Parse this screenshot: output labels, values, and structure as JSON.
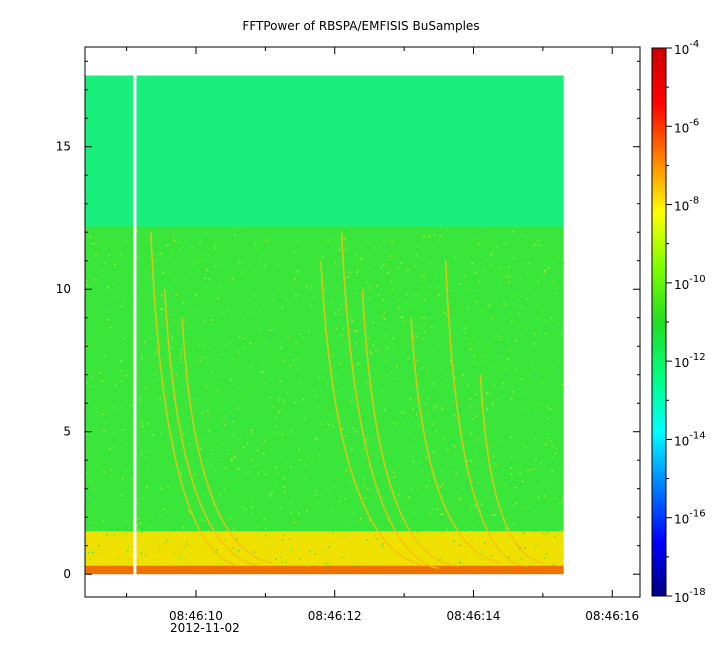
{
  "chart_data": {
    "type": "heatmap",
    "title": "FFTPower of RBSPA/EMFISIS  BuSamples",
    "x_ticks": [
      {
        "t": 10,
        "label": "08:46:10"
      },
      {
        "t": 12,
        "label": "08:46:12"
      },
      {
        "t": 14,
        "label": "08:46:14"
      },
      {
        "t": 16,
        "label": "08:46:16"
      }
    ],
    "x_date_label": "2012-11-02",
    "xlim_seconds_after_0846": [
      8.4,
      16.4
    ],
    "y_ticks": [
      0,
      5,
      10,
      15
    ],
    "ylim": [
      -0.8,
      18.5
    ],
    "data_extent": {
      "x_seconds": [
        8.4,
        15.3
      ],
      "y": [
        0,
        17.5
      ]
    },
    "gap_at_seconds": 9.12,
    "colorbar": {
      "scale": "log",
      "range": [
        1e-18,
        0.0001
      ],
      "ticks": [
        {
          "exp": -4,
          "label_base": "10",
          "label_exp": "-4"
        },
        {
          "exp": -6,
          "label_base": "10",
          "label_exp": "-6"
        },
        {
          "exp": -8,
          "label_base": "10",
          "label_exp": "-8"
        },
        {
          "exp": -10,
          "label_base": "10",
          "label_exp": "-10"
        },
        {
          "exp": -12,
          "label_base": "10",
          "label_exp": "-12"
        },
        {
          "exp": -14,
          "label_base": "10",
          "label_exp": "-14"
        },
        {
          "exp": -16,
          "label_base": "10",
          "label_exp": "-16"
        },
        {
          "exp": -18,
          "label_base": "10",
          "label_exp": "-18"
        }
      ],
      "colormap": [
        "#00007f",
        "#0000ff",
        "#007fff",
        "#00ffff",
        "#00ff80",
        "#22dd22",
        "#7fff00",
        "#ffff00",
        "#ff7f00",
        "#ff0000",
        "#cc0000"
      ]
    },
    "bands": [
      {
        "y_from": 12.2,
        "y_to": 17.5,
        "level_exp": -11.8,
        "color": "#18ef7c"
      },
      {
        "y_from": 1.5,
        "y_to": 12.2,
        "level_exp": -10.2,
        "color": "#3ae63a"
      },
      {
        "y_from": 0.3,
        "y_to": 1.5,
        "level_exp": -8.0,
        "color": "#f0e000"
      },
      {
        "y_from": 0,
        "y_to": 0.3,
        "level_exp": -6.5,
        "color": "#f07000"
      }
    ],
    "chorus_elements": [
      {
        "t_start": 9.35,
        "t_end": 10.6,
        "f_top": 12,
        "f_bottom": 0.3
      },
      {
        "t_start": 9.55,
        "t_end": 10.9,
        "f_top": 10,
        "f_bottom": 0.3
      },
      {
        "t_start": 9.8,
        "t_end": 11.1,
        "f_top": 9,
        "f_bottom": 0.4
      },
      {
        "t_start": 11.8,
        "t_end": 13.3,
        "f_top": 11,
        "f_bottom": 0.3
      },
      {
        "t_start": 12.1,
        "t_end": 13.5,
        "f_top": 12,
        "f_bottom": 0.2
      },
      {
        "t_start": 12.4,
        "t_end": 13.7,
        "f_top": 10,
        "f_bottom": 0.3
      },
      {
        "t_start": 13.1,
        "t_end": 14.4,
        "f_top": 9,
        "f_bottom": 0.4
      },
      {
        "t_start": 13.6,
        "t_end": 14.7,
        "f_top": 11,
        "f_bottom": 0.3
      },
      {
        "t_start": 14.1,
        "t_end": 15.0,
        "f_top": 7,
        "f_bottom": 0.4
      }
    ]
  }
}
